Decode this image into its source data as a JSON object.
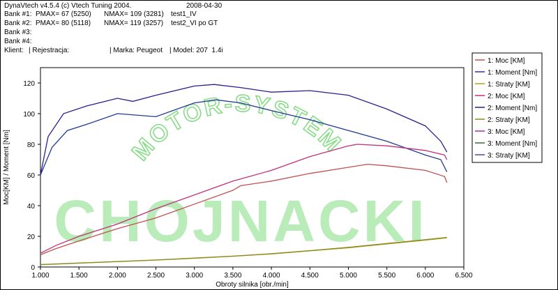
{
  "header": {
    "app_title": "DynaVtech v4.5.4 (c) Vtech Tuning 2004.",
    "date": "2008-04-30",
    "bank1_label": "Bank #1:",
    "bank1_pmax": "PMAX= 67 (5250)",
    "bank1_nmax": "NMAX= 109 (3281)",
    "bank1_name": "test1_IV",
    "bank2_label": "Bank #2:",
    "bank2_pmax": "PMAX= 80 (5118)",
    "bank2_nmax": "NMAX= 119 (3257)",
    "bank2_name": "test2_VI po GT",
    "bank3_label": "Bank #3:",
    "bank4_label": "Bank #4:",
    "client_label": "Klient:",
    "registration_label": "| Rejestracja:",
    "make_label": "| Marka: Peugeot",
    "model_label": "| Model: 207  1.4i"
  },
  "watermark": {
    "line1": "MOTOR-SYSTEM",
    "line2": "CHOJNACKI",
    "color": "#7fdc7f"
  },
  "chart_data": {
    "type": "line",
    "xlabel": "Obroty silnika [obr./min]",
    "ylabel": "Moc[KM] / Moment [Nm]",
    "xlim": [
      1000,
      6500
    ],
    "ylim": [
      0,
      130
    ],
    "x_ticks": [
      1000,
      1500,
      2000,
      2500,
      3000,
      3500,
      4000,
      4500,
      5000,
      5500,
      6000,
      6500
    ],
    "x_tick_labels": [
      "1.000",
      "1.500",
      "2.000",
      "2.500",
      "3.000",
      "3.500",
      "4.000",
      "4.500",
      "5.000",
      "5.500",
      "6.000",
      "6.500"
    ],
    "y_ticks": [
      0,
      20,
      40,
      60,
      80,
      100,
      120
    ],
    "grid": false,
    "legend_position": "right",
    "legend": [
      {
        "label": "1: Moc [KM]",
        "color": "#c0504d"
      },
      {
        "label": "1: Moment [Nm]",
        "color": "#1f3a93"
      },
      {
        "label": "1: Straty [KM]",
        "color": "#b8a020"
      },
      {
        "label": "2: Moc [KM]",
        "color": "#c0307a"
      },
      {
        "label": "2: Moment [Nm]",
        "color": "#2a1f8f"
      },
      {
        "label": "2: Straty [KM]",
        "color": "#8a8a20"
      },
      {
        "label": "3: Moc [KM]",
        "color": "#a030a0"
      },
      {
        "label": "3: Moment [Nm]",
        "color": "#2f6f2f"
      },
      {
        "label": "3: Straty [KM]",
        "color": "#4a4a9a"
      }
    ],
    "series": [
      {
        "name": "1: Moc [KM]",
        "color": "#c0504d",
        "x": [
          1000,
          1200,
          1500,
          2000,
          2500,
          3000,
          3500,
          3600,
          4000,
          4500,
          5000,
          5250,
          5500,
          6000,
          6250,
          6280
        ],
        "y": [
          8,
          12,
          17,
          25,
          32,
          41,
          50,
          53,
          56,
          61,
          65,
          67,
          66,
          63,
          59,
          55
        ]
      },
      {
        "name": "1: Moment [Nm]",
        "color": "#1f3a93",
        "x": [
          1000,
          1150,
          1350,
          1600,
          2000,
          2500,
          3000,
          3281,
          3600,
          4000,
          4500,
          5000,
          5500,
          6000,
          6200,
          6280
        ],
        "y": [
          60,
          78,
          89,
          93,
          100,
          98,
          107,
          109,
          107,
          102,
          96,
          89,
          82,
          73,
          70,
          62
        ]
      },
      {
        "name": "1: Straty [KM]",
        "color": "#b8a020",
        "x": [
          1000,
          1500,
          2000,
          2500,
          3000,
          3500,
          4000,
          4500,
          5000,
          5500,
          6000,
          6280
        ],
        "y": [
          1.5,
          2.5,
          3.5,
          4.5,
          5.7,
          7,
          8.5,
          10.5,
          12.5,
          15,
          17.5,
          19
        ]
      },
      {
        "name": "2: Moc [KM]",
        "color": "#c0307a",
        "x": [
          1000,
          1200,
          1500,
          2000,
          2500,
          3000,
          3500,
          4000,
          4500,
          5000,
          5118,
          5500,
          6000,
          6250,
          6280
        ],
        "y": [
          9,
          14,
          20,
          28,
          38,
          47,
          56,
          63,
          72,
          79,
          80,
          79,
          76,
          73,
          70
        ]
      },
      {
        "name": "2: Moment [Nm]",
        "color": "#2a1f8f",
        "x": [
          1000,
          1100,
          1300,
          1600,
          2000,
          2200,
          2500,
          3000,
          3257,
          3600,
          4000,
          4500,
          5000,
          5500,
          6000,
          6200,
          6280
        ],
        "y": [
          60,
          85,
          100,
          105,
          110,
          108,
          112,
          118,
          119,
          117,
          114,
          115,
          112,
          103,
          92,
          82,
          75
        ]
      },
      {
        "name": "2: Straty [KM]",
        "color": "#8a8a20",
        "x": [
          1000,
          1500,
          2000,
          2500,
          3000,
          3500,
          4000,
          4500,
          5000,
          5500,
          6000,
          6280
        ],
        "y": [
          1.6,
          2.6,
          3.6,
          4.6,
          5.8,
          7.1,
          8.7,
          10.7,
          12.8,
          15.3,
          17.8,
          19.3
        ]
      }
    ]
  }
}
